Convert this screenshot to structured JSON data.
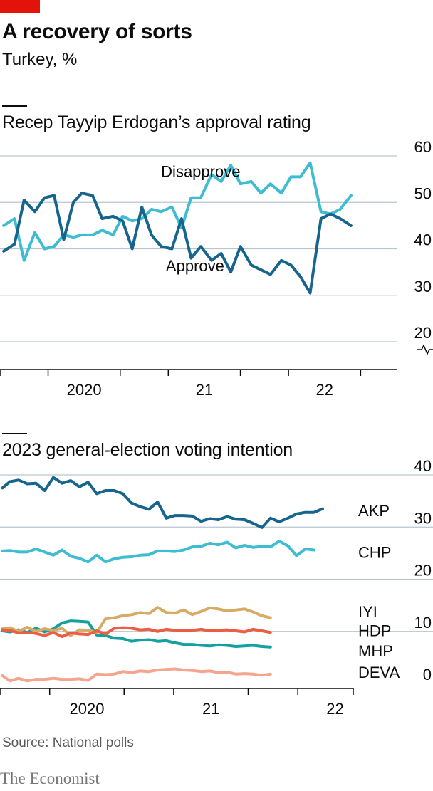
{
  "header": {
    "title": "A recovery of sorts",
    "subtitle": "Turkey, %"
  },
  "footer": {
    "source": "Source: National polls",
    "brand": "The Economist"
  },
  "colors": {
    "accent": "#e3120b",
    "approve": "#17648d",
    "disapprove": "#3ebcd2",
    "akp": "#17648d",
    "chp": "#3ebcd2",
    "iyi": "#d6ab63",
    "hdp": "#eb5e43",
    "mhp": "#15a0a0",
    "deva": "#f4a58d"
  },
  "chart_data": [
    {
      "type": "line",
      "title": "Recep Tayyip Erdogan’s approval rating",
      "ylim": [
        20,
        60
      ],
      "y_ticks": [
        20,
        30,
        40,
        50,
        60
      ],
      "axis_break": true,
      "xlim": [
        2019.6,
        2022.9
      ],
      "x_ticks": [
        2019.6,
        2020,
        2020.6,
        2021,
        2021.6,
        2022,
        2022.6
      ],
      "x_labels": [
        {
          "label": "2020",
          "x": 2020.3
        },
        {
          "label": "21",
          "x": 2021.3
        },
        {
          "label": "22",
          "x": 2022.3
        }
      ],
      "grid": true,
      "series": [
        {
          "name": "Approve",
          "color_key": "approve",
          "x": [
            2019.63,
            2019.72,
            2019.8,
            2019.89,
            2019.97,
            2020.05,
            2020.13,
            2020.21,
            2020.28,
            2020.37,
            2020.45,
            2020.54,
            2020.62,
            2020.7,
            2020.78,
            2020.86,
            2020.94,
            2021.03,
            2021.11,
            2021.19,
            2021.27,
            2021.36,
            2021.44,
            2021.52,
            2021.6,
            2021.69,
            2021.77,
            2021.85,
            2021.94,
            2022.02,
            2022.1,
            2022.18,
            2022.27,
            2022.35,
            2022.43,
            2022.52,
            2022.6,
            2022.7,
            2022.8,
            2022.88
          ],
          "values": [
            39.5,
            41,
            50.5,
            48,
            51,
            51.5,
            42,
            50,
            52,
            51.5,
            46.5,
            47,
            46,
            40,
            49,
            43,
            40.5,
            40,
            46.5,
            38,
            40.5,
            37.5,
            39,
            35,
            40.5,
            36.5,
            35.5,
            34.5,
            37.5,
            36.5,
            34,
            30.5,
            46.5,
            47.5,
            46.5,
            45,
            null,
            null,
            null,
            null
          ]
        },
        {
          "name": "Disapprove",
          "color_key": "disapprove",
          "x": [
            2019.63,
            2019.72,
            2019.8,
            2019.89,
            2019.97,
            2020.05,
            2020.13,
            2020.21,
            2020.28,
            2020.37,
            2020.45,
            2020.54,
            2020.62,
            2020.7,
            2020.78,
            2020.86,
            2020.94,
            2021.03,
            2021.11,
            2021.19,
            2021.27,
            2021.36,
            2021.44,
            2021.52,
            2021.6,
            2021.69,
            2021.77,
            2021.85,
            2021.94,
            2022.02,
            2022.1,
            2022.18,
            2022.27,
            2022.35,
            2022.43,
            2022.52,
            2022.6
          ],
          "values": [
            45,
            46.5,
            37.5,
            43.5,
            40,
            40.5,
            43,
            42.5,
            43,
            43,
            44,
            43,
            47,
            46,
            46.5,
            48.5,
            48,
            49,
            44.5,
            51,
            51,
            56,
            54.5,
            58,
            54,
            54.5,
            52,
            54,
            52,
            55.5,
            55.5,
            58.5,
            48,
            47.5,
            48.5,
            51.5,
            null
          ]
        }
      ],
      "annotations": [
        {
          "text": "Disapprove",
          "x": 2020.94,
          "y": 55.5
        },
        {
          "text": "Approve",
          "x": 2020.98,
          "y": 35.2
        }
      ]
    },
    {
      "type": "line",
      "title": "2023 general-election voting intention",
      "ylim": [
        0,
        40
      ],
      "y_ticks": [
        0,
        10,
        20,
        30,
        40
      ],
      "xlim": [
        2019.6,
        2022.9
      ],
      "x_ticks": [
        2019.6,
        2020,
        2020.6,
        2021,
        2021.6,
        2022,
        2022.6
      ],
      "x_labels": [
        {
          "label": "2020",
          "x": 2020.3
        },
        {
          "label": "21",
          "x": 2021.3
        },
        {
          "label": "22",
          "x": 2022.3
        }
      ],
      "grid": true,
      "x": [
        2019.62,
        2019.68,
        2019.75,
        2019.82,
        2019.89,
        2019.96,
        2020.03,
        2020.1,
        2020.17,
        2020.24,
        2020.31,
        2020.38,
        2020.45,
        2020.52,
        2020.59,
        2020.66,
        2020.73,
        2020.8,
        2020.87,
        2020.94,
        2021.01,
        2021.08,
        2021.15,
        2021.22,
        2021.29,
        2021.36,
        2021.43,
        2021.5,
        2021.57,
        2021.64,
        2021.71,
        2021.78,
        2021.85,
        2021.92,
        2021.99,
        2022.06,
        2022.13,
        2022.2,
        2022.27,
        2022.34,
        2022.41,
        2022.48
      ],
      "series": [
        {
          "name": "AKP",
          "color_key": "akp",
          "label_y": 33.2,
          "values": [
            37.5,
            38.7,
            39,
            38.3,
            38.4,
            37,
            39.5,
            38.4,
            38.9,
            37.7,
            38.6,
            36.4,
            37,
            37,
            36.4,
            34.6,
            33.9,
            33.4,
            34.8,
            31.7,
            32.2,
            32.2,
            32.1,
            31.1,
            31.6,
            31.4,
            32,
            31.5,
            31.4,
            30.7,
            29.9,
            31.7,
            31,
            31.7,
            32.5,
            32.8,
            32.8,
            33.5,
            null,
            null,
            null,
            null
          ]
        },
        {
          "name": "CHP",
          "color_key": "chp",
          "label_y": 25.2,
          "values": [
            25.4,
            25.5,
            25.2,
            25.2,
            25.8,
            25.2,
            24.6,
            25.6,
            24.4,
            24,
            23.3,
            24.6,
            23.3,
            23.9,
            24.2,
            24.3,
            24.6,
            24.7,
            25.4,
            25.4,
            25.3,
            25.6,
            26.2,
            26.3,
            26.9,
            26.6,
            27.1,
            26,
            26.5,
            26.1,
            26.3,
            26.2,
            27.3,
            26.4,
            24.5,
            25.8,
            25.6,
            null,
            null,
            null,
            null,
            null
          ]
        },
        {
          "name": "IYI",
          "color_key": "iyi",
          "label_y": 13.8,
          "values": [
            10.5,
            10.7,
            10,
            10.8,
            10,
            10.5,
            10.2,
            10.6,
            9.2,
            10.3,
            10.2,
            9.8,
            12.4,
            12.6,
            13,
            13.2,
            13.6,
            13.4,
            14.6,
            13.6,
            13.5,
            14.1,
            13.2,
            13.8,
            14.5,
            14.3,
            13.9,
            14.1,
            14.3,
            13.7,
            13,
            12.6,
            null,
            null,
            null,
            null,
            null,
            null,
            null,
            null,
            null,
            null
          ]
        },
        {
          "name": "HDP",
          "color_key": "hdp",
          "label_y": 10.2,
          "values": [
            10.3,
            10.2,
            9.7,
            9.8,
            9.6,
            9.2,
            9.8,
            9,
            9.7,
            9.5,
            9.4,
            10.1,
            9.5,
            10.6,
            10.7,
            10.6,
            10.3,
            10.4,
            10,
            10.4,
            10.2,
            10.1,
            10.2,
            10.4,
            10.1,
            10.2,
            10.3,
            10.1,
            9.9,
            10.4,
            10.1,
            9.8,
            null,
            null,
            null,
            null,
            null,
            null,
            null,
            null,
            null,
            null
          ]
        },
        {
          "name": "MHP",
          "color_key": "mhp",
          "label_y": 6.3,
          "values": [
            10.1,
            9.9,
            10.3,
            9.8,
            10.6,
            9.9,
            10.5,
            11.6,
            12,
            11.9,
            11.8,
            9.3,
            9.2,
            8.7,
            8.6,
            8.1,
            8.3,
            8.4,
            8.1,
            8.2,
            7.8,
            7.5,
            7.5,
            7.3,
            7.2,
            7.4,
            7.3,
            7.1,
            7.2,
            7.3,
            7.1,
            7,
            null,
            null,
            null,
            null,
            null,
            null,
            null,
            null,
            null,
            null
          ]
        },
        {
          "name": "DEVA",
          "color_key": "deva",
          "label_y": 2.2,
          "values": [
            1.5,
            0.5,
            1,
            0.5,
            0.8,
            0.8,
            1,
            0.8,
            0.8,
            0.9,
            0.6,
            1.8,
            1.7,
            1.8,
            2.3,
            2.1,
            2.4,
            2.3,
            2.6,
            2.7,
            2.8,
            2.6,
            2.5,
            2.3,
            2.4,
            2.1,
            2.2,
            1.8,
            1.9,
            1.8,
            1.6,
            1.8,
            null,
            null,
            null,
            null,
            null,
            null,
            null,
            null,
            null,
            null
          ]
        }
      ]
    }
  ]
}
